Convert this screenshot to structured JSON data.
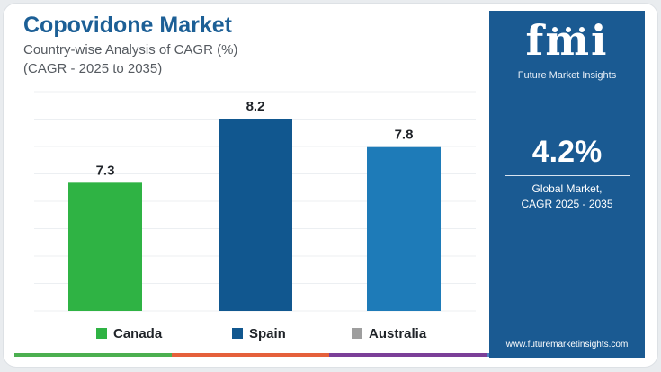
{
  "header": {
    "title": "Copovidone Market",
    "subtitle": "Country-wise Analysis of CAGR (%)",
    "subtitle2": "(CAGR - 2025 to 2035)"
  },
  "chart_data": {
    "type": "bar",
    "categories": [
      "Canada",
      "Spain",
      "Australia"
    ],
    "values": [
      7.3,
      8.2,
      7.8
    ],
    "data_labels": [
      "7.3",
      "8.2",
      "7.8"
    ],
    "colors": [
      "#2fb344",
      "#11578f",
      "#1e7bb8"
    ],
    "legend_swatch_colors": [
      "#2fb344",
      "#11578f",
      "#9e9e9e"
    ],
    "ylim": [
      5.5,
      8.2
    ],
    "grid": true,
    "legend_position": "bottom"
  },
  "legend": {
    "items": [
      {
        "label": "Canada",
        "color": "#2fb344"
      },
      {
        "label": "Spain",
        "color": "#11578f"
      },
      {
        "label": "Australia",
        "color": "#9e9e9e"
      }
    ]
  },
  "bottom_bar_colors": [
    "#4caf50",
    "#e5603b",
    "#7b3f98",
    "#4f7fc2"
  ],
  "side_panel": {
    "logo_text": "fmi",
    "logo_caption": "Future Market Insights",
    "value": "4.2%",
    "caption_line1": "Global Market,",
    "caption_line2": "CAGR 2025 - 2035",
    "website": "www.futuremarketinsights.com",
    "background": "#1a5a92"
  }
}
